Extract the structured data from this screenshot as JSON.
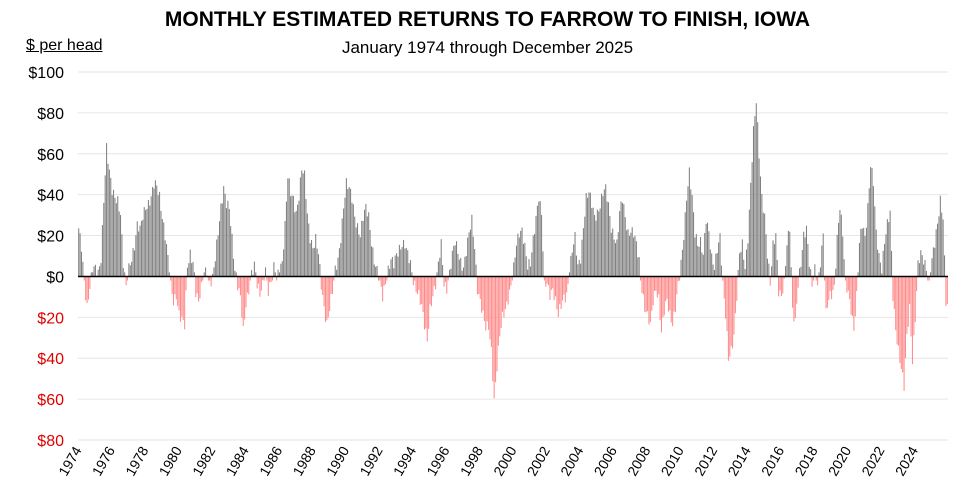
{
  "title": "MONTHLY ESTIMATED RETURNS TO FARROW TO FINISH, IOWA",
  "subtitle": "January 1974 through December 2025",
  "unit_label": "$ per head",
  "colors": {
    "positive": "#808080",
    "negative": "#ff8a8a",
    "negative_label": "#e00000",
    "axis": "#000000",
    "grid": "#e6e6e6"
  },
  "chart_data": {
    "type": "bar",
    "title": "MONTHLY ESTIMATED RETURNS TO FARROW TO FINISH, IOWA",
    "subtitle": "January 1974 through December 2025",
    "ylabel": "$ per head",
    "ylim": [
      -80,
      100
    ],
    "grid": true,
    "y_ticks": [
      100,
      80,
      60,
      40,
      20,
      0,
      -20,
      -40,
      -60,
      -80
    ],
    "y_tick_labels": [
      "$100",
      "$80",
      "$60",
      "$40",
      "$20",
      "$0",
      "$20",
      "$40",
      "$60",
      "$80"
    ],
    "x_tick_labels": [
      "1974",
      "1976",
      "1978",
      "1980",
      "1982",
      "1984",
      "1986",
      "1988",
      "1990",
      "1992",
      "1994",
      "1996",
      "1998",
      "2000",
      "2002",
      "2004",
      "2006",
      "2008",
      "2010",
      "2012",
      "2014",
      "2016",
      "2018",
      "2020",
      "2022",
      "2024"
    ],
    "start": "1974-01",
    "end": "2025-12",
    "note": "monthly values in $ per head, estimated from the chart; anchors interpolated to monthly bars",
    "anchors": [
      [
        "1974-01",
        22
      ],
      [
        "1974-03",
        14
      ],
      [
        "1974-05",
        -2
      ],
      [
        "1974-07",
        -14
      ],
      [
        "1974-09",
        -5
      ],
      [
        "1974-11",
        3
      ],
      [
        "1975-01",
        3
      ],
      [
        "1975-03",
        2
      ],
      [
        "1975-05",
        10
      ],
      [
        "1975-07",
        38
      ],
      [
        "1975-09",
        62
      ],
      [
        "1975-11",
        50
      ],
      [
        "1976-01",
        42
      ],
      [
        "1976-03",
        40
      ],
      [
        "1976-05",
        38
      ],
      [
        "1976-07",
        30
      ],
      [
        "1976-09",
        5
      ],
      [
        "1976-11",
        -6
      ],
      [
        "1977-01",
        5
      ],
      [
        "1977-03",
        10
      ],
      [
        "1977-05",
        15
      ],
      [
        "1977-07",
        24
      ],
      [
        "1977-09",
        22
      ],
      [
        "1977-11",
        30
      ],
      [
        "1978-01",
        35
      ],
      [
        "1978-03",
        36
      ],
      [
        "1978-05",
        38
      ],
      [
        "1978-07",
        44
      ],
      [
        "1978-09",
        44
      ],
      [
        "1978-11",
        40
      ],
      [
        "1979-01",
        30
      ],
      [
        "1979-03",
        20
      ],
      [
        "1979-05",
        8
      ],
      [
        "1979-07",
        -5
      ],
      [
        "1979-09",
        -12
      ],
      [
        "1979-11",
        -8
      ],
      [
        "1980-01",
        -18
      ],
      [
        "1980-03",
        -22
      ],
      [
        "1980-05",
        -25
      ],
      [
        "1980-07",
        5
      ],
      [
        "1980-09",
        12
      ],
      [
        "1980-11",
        8
      ],
      [
        "1981-01",
        -8
      ],
      [
        "1981-03",
        -14
      ],
      [
        "1981-05",
        -6
      ],
      [
        "1981-07",
        3
      ],
      [
        "1981-09",
        4
      ],
      [
        "1981-11",
        -4
      ],
      [
        "1982-01",
        -2
      ],
      [
        "1982-03",
        8
      ],
      [
        "1982-05",
        22
      ],
      [
        "1982-07",
        35
      ],
      [
        "1982-09",
        44
      ],
      [
        "1982-11",
        35
      ],
      [
        "1983-01",
        32
      ],
      [
        "1983-03",
        18
      ],
      [
        "1983-05",
        4
      ],
      [
        "1983-07",
        -3
      ],
      [
        "1983-09",
        -10
      ],
      [
        "1983-11",
        -28
      ],
      [
        "1984-01",
        -15
      ],
      [
        "1984-03",
        -6
      ],
      [
        "1984-05",
        3
      ],
      [
        "1984-07",
        6
      ],
      [
        "1984-09",
        -5
      ],
      [
        "1984-11",
        -10
      ],
      [
        "1985-01",
        -4
      ],
      [
        "1985-03",
        5
      ],
      [
        "1985-05",
        -6
      ],
      [
        "1985-07",
        -3
      ],
      [
        "1985-09",
        3
      ],
      [
        "1985-11",
        -2
      ],
      [
        "1986-01",
        5
      ],
      [
        "1986-03",
        8
      ],
      [
        "1986-05",
        25
      ],
      [
        "1986-07",
        48
      ],
      [
        "1986-09",
        40
      ],
      [
        "1986-11",
        38
      ],
      [
        "1987-01",
        32
      ],
      [
        "1987-03",
        40
      ],
      [
        "1987-05",
        52
      ],
      [
        "1987-07",
        48
      ],
      [
        "1987-09",
        30
      ],
      [
        "1987-11",
        20
      ],
      [
        "1988-01",
        15
      ],
      [
        "1988-03",
        18
      ],
      [
        "1988-05",
        10
      ],
      [
        "1988-07",
        -5
      ],
      [
        "1988-09",
        -15
      ],
      [
        "1988-11",
        -22
      ],
      [
        "1989-01",
        -15
      ],
      [
        "1989-03",
        -8
      ],
      [
        "1989-05",
        2
      ],
      [
        "1989-07",
        8
      ],
      [
        "1989-09",
        20
      ],
      [
        "1989-11",
        35
      ],
      [
        "1990-01",
        45
      ],
      [
        "1990-03",
        42
      ],
      [
        "1990-05",
        38
      ],
      [
        "1990-07",
        30
      ],
      [
        "1990-09",
        25
      ],
      [
        "1990-11",
        20
      ],
      [
        "1991-01",
        28
      ],
      [
        "1991-03",
        33
      ],
      [
        "1991-05",
        30
      ],
      [
        "1991-07",
        18
      ],
      [
        "1991-09",
        8
      ],
      [
        "1991-11",
        2
      ],
      [
        "1992-01",
        -4
      ],
      [
        "1992-03",
        -10
      ],
      [
        "1992-05",
        -2
      ],
      [
        "1992-07",
        4
      ],
      [
        "1992-09",
        8
      ],
      [
        "1992-11",
        5
      ],
      [
        "1993-01",
        10
      ],
      [
        "1993-03",
        14
      ],
      [
        "1993-05",
        17
      ],
      [
        "1993-07",
        16
      ],
      [
        "1993-09",
        10
      ],
      [
        "1993-11",
        5
      ],
      [
        "1994-01",
        -2
      ],
      [
        "1994-03",
        -5
      ],
      [
        "1994-05",
        -8
      ],
      [
        "1994-07",
        -15
      ],
      [
        "1994-09",
        -25
      ],
      [
        "1994-11",
        -32
      ],
      [
        "1995-01",
        -15
      ],
      [
        "1995-03",
        -8
      ],
      [
        "1995-05",
        -4
      ],
      [
        "1995-07",
        5
      ],
      [
        "1995-09",
        15
      ],
      [
        "1995-11",
        -3
      ],
      [
        "1996-01",
        -5
      ],
      [
        "1996-03",
        2
      ],
      [
        "1996-05",
        10
      ],
      [
        "1996-07",
        16
      ],
      [
        "1996-09",
        12
      ],
      [
        "1996-11",
        8
      ],
      [
        "1997-01",
        5
      ],
      [
        "1997-03",
        12
      ],
      [
        "1997-05",
        20
      ],
      [
        "1997-07",
        27
      ],
      [
        "1997-09",
        15
      ],
      [
        "1997-11",
        -5
      ],
      [
        "1998-01",
        -12
      ],
      [
        "1998-03",
        -20
      ],
      [
        "1998-05",
        -26
      ],
      [
        "1998-07",
        -24
      ],
      [
        "1998-09",
        -35
      ],
      [
        "1998-11",
        -60
      ],
      [
        "1999-01",
        -45
      ],
      [
        "1999-03",
        -30
      ],
      [
        "1999-05",
        -20
      ],
      [
        "1999-07",
        -15
      ],
      [
        "1999-09",
        -10
      ],
      [
        "1999-11",
        -5
      ],
      [
        "2000-01",
        3
      ],
      [
        "2000-03",
        15
      ],
      [
        "2000-05",
        22
      ],
      [
        "2000-07",
        24
      ],
      [
        "2000-09",
        15
      ],
      [
        "2000-11",
        4
      ],
      [
        "2001-01",
        5
      ],
      [
        "2001-03",
        18
      ],
      [
        "2001-05",
        30
      ],
      [
        "2001-07",
        40
      ],
      [
        "2001-09",
        30
      ],
      [
        "2001-11",
        -5
      ],
      [
        "2002-01",
        -4
      ],
      [
        "2002-03",
        -8
      ],
      [
        "2002-05",
        -5
      ],
      [
        "2002-07",
        -12
      ],
      [
        "2002-09",
        -20
      ],
      [
        "2002-11",
        -15
      ],
      [
        "2003-01",
        -10
      ],
      [
        "2003-03",
        -8
      ],
      [
        "2003-05",
        3
      ],
      [
        "2003-07",
        12
      ],
      [
        "2003-09",
        18
      ],
      [
        "2003-11",
        5
      ],
      [
        "2004-01",
        10
      ],
      [
        "2004-03",
        25
      ],
      [
        "2004-05",
        38
      ],
      [
        "2004-07",
        40
      ],
      [
        "2004-09",
        35
      ],
      [
        "2004-11",
        30
      ],
      [
        "2005-01",
        32
      ],
      [
        "2005-03",
        35
      ],
      [
        "2005-05",
        40
      ],
      [
        "2005-07",
        42
      ],
      [
        "2005-09",
        35
      ],
      [
        "2005-11",
        25
      ],
      [
        "2006-01",
        20
      ],
      [
        "2006-03",
        15
      ],
      [
        "2006-05",
        30
      ],
      [
        "2006-07",
        38
      ],
      [
        "2006-09",
        30
      ],
      [
        "2006-11",
        22
      ],
      [
        "2007-01",
        22
      ],
      [
        "2007-03",
        20
      ],
      [
        "2007-05",
        15
      ],
      [
        "2007-07",
        8
      ],
      [
        "2007-09",
        -5
      ],
      [
        "2007-11",
        -15
      ],
      [
        "2008-01",
        -20
      ],
      [
        "2008-03",
        -25
      ],
      [
        "2008-05",
        -12
      ],
      [
        "2008-07",
        -5
      ],
      [
        "2008-09",
        -10
      ],
      [
        "2008-11",
        -28
      ],
      [
        "2009-01",
        -18
      ],
      [
        "2009-03",
        -12
      ],
      [
        "2009-05",
        -18
      ],
      [
        "2009-07",
        -22
      ],
      [
        "2009-09",
        -15
      ],
      [
        "2009-11",
        -5
      ],
      [
        "2010-01",
        5
      ],
      [
        "2010-03",
        20
      ],
      [
        "2010-05",
        40
      ],
      [
        "2010-07",
        52
      ],
      [
        "2010-09",
        38
      ],
      [
        "2010-11",
        20
      ],
      [
        "2011-01",
        15
      ],
      [
        "2011-03",
        18
      ],
      [
        "2011-05",
        12
      ],
      [
        "2011-07",
        28
      ],
      [
        "2011-09",
        20
      ],
      [
        "2011-11",
        8
      ],
      [
        "2012-01",
        5
      ],
      [
        "2012-03",
        15
      ],
      [
        "2012-05",
        20
      ],
      [
        "2012-07",
        -5
      ],
      [
        "2012-09",
        -20
      ],
      [
        "2012-11",
        -40
      ],
      [
        "2013-01",
        -35
      ],
      [
        "2013-03",
        -28
      ],
      [
        "2013-05",
        -10
      ],
      [
        "2013-07",
        10
      ],
      [
        "2013-09",
        15
      ],
      [
        "2013-11",
        5
      ],
      [
        "2014-01",
        20
      ],
      [
        "2014-03",
        45
      ],
      [
        "2014-05",
        70
      ],
      [
        "2014-07",
        85
      ],
      [
        "2014-09",
        60
      ],
      [
        "2014-11",
        40
      ],
      [
        "2015-01",
        30
      ],
      [
        "2015-03",
        10
      ],
      [
        "2015-05",
        -5
      ],
      [
        "2015-07",
        15
      ],
      [
        "2015-09",
        22
      ],
      [
        "2015-11",
        -6
      ],
      [
        "2016-01",
        -10
      ],
      [
        "2016-03",
        -5
      ],
      [
        "2016-05",
        15
      ],
      [
        "2016-07",
        25
      ],
      [
        "2016-09",
        -15
      ],
      [
        "2016-11",
        -22
      ],
      [
        "2017-01",
        -5
      ],
      [
        "2017-03",
        5
      ],
      [
        "2017-05",
        20
      ],
      [
        "2017-07",
        25
      ],
      [
        "2017-09",
        8
      ],
      [
        "2017-11",
        -5
      ],
      [
        "2018-01",
        2
      ],
      [
        "2018-03",
        -5
      ],
      [
        "2018-05",
        8
      ],
      [
        "2018-07",
        22
      ],
      [
        "2018-09",
        -18
      ],
      [
        "2018-11",
        -12
      ],
      [
        "2019-01",
        -10
      ],
      [
        "2019-03",
        -5
      ],
      [
        "2019-05",
        20
      ],
      [
        "2019-07",
        35
      ],
      [
        "2019-09",
        20
      ],
      [
        "2019-11",
        -5
      ],
      [
        "2020-01",
        -8
      ],
      [
        "2020-03",
        -15
      ],
      [
        "2020-05",
        -25
      ],
      [
        "2020-07",
        -10
      ],
      [
        "2020-09",
        15
      ],
      [
        "2020-11",
        25
      ],
      [
        "2021-01",
        20
      ],
      [
        "2021-03",
        35
      ],
      [
        "2021-05",
        55
      ],
      [
        "2021-07",
        45
      ],
      [
        "2021-09",
        20
      ],
      [
        "2021-11",
        10
      ],
      [
        "2022-01",
        5
      ],
      [
        "2022-03",
        18
      ],
      [
        "2022-05",
        25
      ],
      [
        "2022-07",
        30
      ],
      [
        "2022-09",
        -10
      ],
      [
        "2022-11",
        -25
      ],
      [
        "2023-01",
        -35
      ],
      [
        "2023-03",
        -45
      ],
      [
        "2023-05",
        -55
      ],
      [
        "2023-07",
        -30
      ],
      [
        "2023-09",
        -15
      ],
      [
        "2023-11",
        -40
      ],
      [
        "2024-01",
        -20
      ],
      [
        "2024-03",
        5
      ],
      [
        "2024-05",
        10
      ],
      [
        "2024-07",
        8
      ],
      [
        "2024-09",
        5
      ],
      [
        "2024-11",
        -3
      ],
      [
        "2025-01",
        8
      ],
      [
        "2025-03",
        15
      ],
      [
        "2025-05",
        25
      ],
      [
        "2025-07",
        38
      ],
      [
        "2025-09",
        30
      ],
      [
        "2025-11",
        -12
      ],
      [
        "2025-12",
        -15
      ]
    ]
  }
}
